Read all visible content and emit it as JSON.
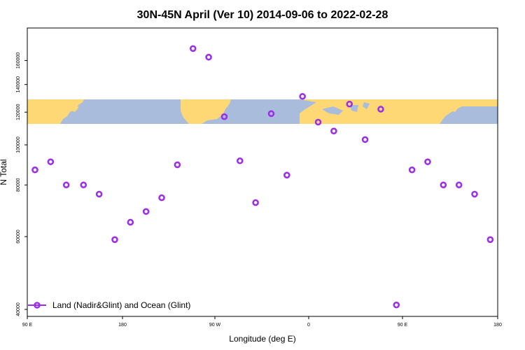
{
  "chart_data": {
    "type": "scatter",
    "title": "30N-45N April (Ver 10)   2014-09-06 to 2022-02-28",
    "xlabel": "Longitude (deg E)",
    "ylabel": "N Total",
    "x_tick_labels": [
      "90 E",
      "180",
      "90 W",
      "0",
      "90 E",
      "180"
    ],
    "y_ticks": [
      40000,
      60000,
      80000,
      100000,
      120000,
      140000,
      160000
    ],
    "y_scale": "log",
    "ylim": [
      40000,
      180000
    ],
    "grid": false,
    "legend_position": "bottom-left",
    "series": [
      {
        "name": "Land (Nadir&Glint) and Ocean (Glint)",
        "color": "#9b30e8",
        "marker": "open-circle",
        "x_index": [
          0.5,
          1.5,
          2.5,
          3.6,
          4.6,
          5.6,
          6.6,
          7.6,
          8.6,
          9.6,
          10.6,
          11.6,
          12.6,
          13.6,
          14.6,
          15.6,
          16.6,
          17.6,
          18.6,
          19.6,
          20.6,
          21.6,
          22.6,
          23.6,
          24.6,
          25.6,
          26.6,
          27.6,
          28.6,
          29.6
        ],
        "values": [
          87000,
          91000,
          80000,
          80000,
          76000,
          59000,
          65000,
          69000,
          74500,
          89500,
          171000,
          163000,
          117000,
          91500,
          72500,
          119000,
          84500,
          131000,
          113500,
          108000,
          125500,
          103000,
          122000,
          41000,
          87000,
          91000,
          80000,
          80000,
          76000,
          59000
        ]
      }
    ]
  }
}
